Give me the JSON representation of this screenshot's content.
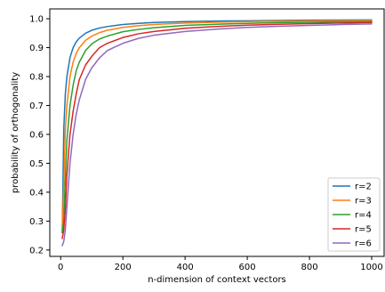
{
  "chart_data": {
    "type": "line",
    "title": "",
    "xlabel": "n-dimension of context vectors",
    "ylabel": "probability of orthogonality",
    "xlim": [
      -35,
      1040
    ],
    "ylim": [
      0.178,
      1.034
    ],
    "x_ticks": [
      0,
      200,
      400,
      600,
      800,
      1000
    ],
    "y_ticks": [
      0.2,
      0.3,
      0.4,
      0.5,
      0.6,
      0.7,
      0.8,
      0.9,
      1.0
    ],
    "x_tick_labels": [
      "0",
      "200",
      "400",
      "600",
      "800",
      "1000"
    ],
    "y_tick_labels": [
      "0.2",
      "0.3",
      "0.4",
      "0.5",
      "0.6",
      "0.7",
      "0.8",
      "0.9",
      "1.0"
    ],
    "grid": false,
    "legend_position": "lower-right",
    "x": [
      5,
      10,
      15,
      20,
      30,
      40,
      50,
      60,
      80,
      100,
      125,
      150,
      200,
      250,
      300,
      400,
      500,
      600,
      700,
      800,
      900,
      1000
    ],
    "series": [
      {
        "name": "r=2",
        "color": "#1f77b4",
        "values": [
          0.26,
          0.62,
          0.74,
          0.8,
          0.866,
          0.9,
          0.92,
          0.933,
          0.95,
          0.96,
          0.968,
          0.973,
          0.98,
          0.984,
          0.987,
          0.99,
          0.992,
          0.993,
          0.994,
          0.995,
          0.9955,
          0.996
        ]
      },
      {
        "name": "r=3",
        "color": "#ff7f0e",
        "values": [
          0.27,
          0.43,
          0.62,
          0.7,
          0.8,
          0.85,
          0.88,
          0.9,
          0.925,
          0.94,
          0.952,
          0.96,
          0.97,
          0.976,
          0.98,
          0.985,
          0.988,
          0.99,
          0.9915,
          0.9925,
          0.9933,
          0.994
        ]
      },
      {
        "name": "r=4",
        "color": "#2ca02c",
        "values": [
          0.26,
          0.3,
          0.45,
          0.58,
          0.7,
          0.77,
          0.82,
          0.85,
          0.89,
          0.913,
          0.93,
          0.94,
          0.955,
          0.963,
          0.969,
          0.977,
          0.981,
          0.984,
          0.9865,
          0.988,
          0.9893,
          0.99
        ]
      },
      {
        "name": "r=5",
        "color": "#d62728",
        "values": [
          0.24,
          0.27,
          0.34,
          0.46,
          0.6,
          0.68,
          0.74,
          0.79,
          0.84,
          0.87,
          0.9,
          0.915,
          0.935,
          0.948,
          0.956,
          0.967,
          0.973,
          0.978,
          0.981,
          0.983,
          0.985,
          0.987
        ]
      },
      {
        "name": "r=6",
        "color": "#9467bd",
        "values": [
          0.215,
          0.23,
          0.27,
          0.35,
          0.5,
          0.6,
          0.67,
          0.72,
          0.79,
          0.83,
          0.865,
          0.89,
          0.915,
          0.932,
          0.943,
          0.956,
          0.964,
          0.97,
          0.974,
          0.977,
          0.98,
          0.982
        ]
      }
    ]
  }
}
